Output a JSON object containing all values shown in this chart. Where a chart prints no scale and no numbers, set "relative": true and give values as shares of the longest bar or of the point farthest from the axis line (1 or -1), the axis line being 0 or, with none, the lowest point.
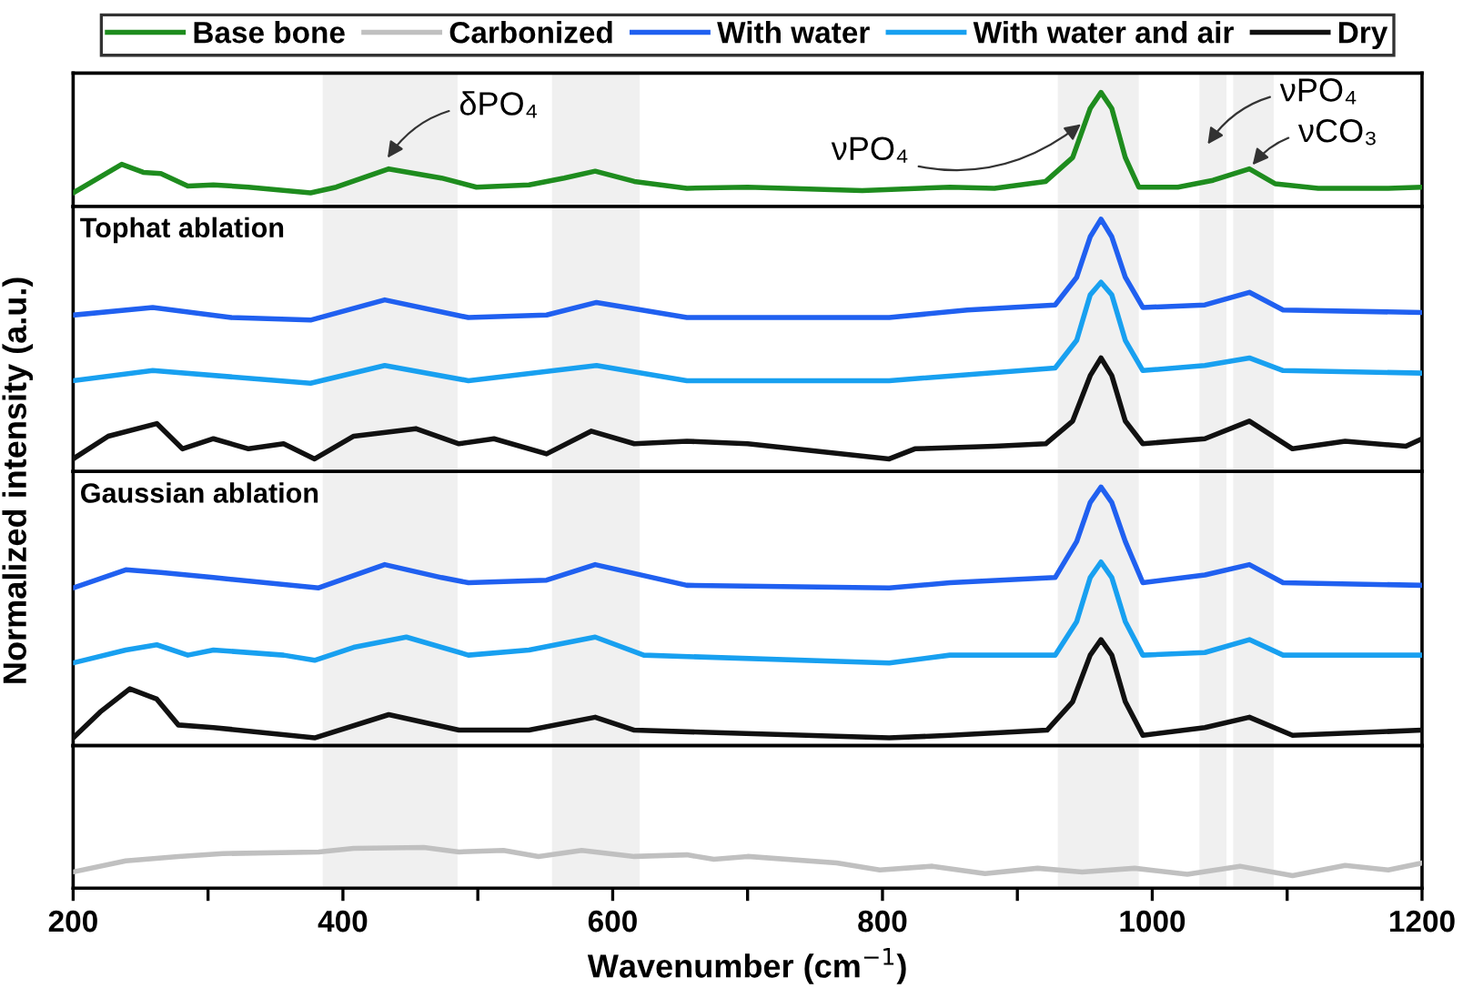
{
  "chart_data": [
    {
      "type": "line",
      "relative": true,
      "xlim": [
        200,
        1200
      ],
      "tick_labels": false,
      "legend": "top",
      "ylabel": "Normalized intensity (a.u.)",
      "bands": [
        {
          "axis": "x",
          "from": 385,
          "to": 485,
          "color": "#f0f0f0"
        },
        {
          "axis": "x",
          "from": 555,
          "to": 620,
          "color": "#f0f0f0"
        },
        {
          "axis": "x",
          "from": 930,
          "to": 990,
          "color": "#f0f0f0"
        },
        {
          "axis": "x",
          "from": 1035,
          "to": 1055,
          "color": "#f0f0f0"
        },
        {
          "axis": "x",
          "from": 1060,
          "to": 1090,
          "color": "#f0f0f0"
        }
      ],
      "annotations": [
        {
          "text": "δPO₄",
          "x": 431,
          "y": 0.39
        },
        {
          "text": "νPO₄",
          "x": 950,
          "y": 0.75
        },
        {
          "text": "νPO₄",
          "x": 1039,
          "y": 0.51
        },
        {
          "text": "νCO₃",
          "x": 1072,
          "y": 0.33
        }
      ],
      "series": [
        {
          "name": "Base bone",
          "color": "#1e8c1e",
          "x": [
            200,
            236,
            252,
            265,
            285,
            304,
            330,
            376,
            395,
            434,
            473,
            499,
            538,
            564,
            587,
            616,
            655,
            700,
            785,
            850,
            883,
            921,
            941,
            954,
            962,
            970,
            980,
            990,
            1019,
            1045,
            1072,
            1091,
            1123,
            1175,
            1200
          ],
          "values": [
            0.12,
            0.37,
            0.3,
            0.29,
            0.18,
            0.19,
            0.17,
            0.12,
            0.17,
            0.33,
            0.25,
            0.17,
            0.19,
            0.25,
            0.31,
            0.22,
            0.16,
            0.17,
            0.14,
            0.17,
            0.16,
            0.22,
            0.43,
            0.86,
            1,
            0.86,
            0.43,
            0.17,
            0.17,
            0.23,
            0.33,
            0.2,
            0.16,
            0.16,
            0.17
          ]
        }
      ]
    },
    {
      "type": "line",
      "relative": true,
      "xlim": [
        200,
        1200
      ],
      "tick_labels": false,
      "title": "Tophat ablation",
      "legend": "top",
      "bands": [
        {
          "axis": "x",
          "from": 385,
          "to": 485,
          "color": "#f0f0f0"
        },
        {
          "axis": "x",
          "from": 555,
          "to": 620,
          "color": "#f0f0f0"
        },
        {
          "axis": "x",
          "from": 930,
          "to": 990,
          "color": "#f0f0f0"
        },
        {
          "axis": "x",
          "from": 1035,
          "to": 1055,
          "color": "#f0f0f0"
        },
        {
          "axis": "x",
          "from": 1060,
          "to": 1090,
          "color": "#f0f0f0"
        }
      ],
      "series": [
        {
          "name": "With water",
          "color": "#2060f0",
          "x": [
            200,
            259,
            317,
            376,
            431,
            493,
            551,
            588,
            655,
            805,
            863,
            928,
            944,
            954,
            962,
            970,
            980,
            993,
            1039,
            1072,
            1097,
            1200
          ],
          "values": [
            0.62,
            0.65,
            0.61,
            0.6,
            0.68,
            0.61,
            0.62,
            0.67,
            0.61,
            0.61,
            0.64,
            0.66,
            0.77,
            0.93,
            1,
            0.93,
            0.77,
            0.65,
            0.66,
            0.71,
            0.64,
            0.63
          ]
        },
        {
          "name": "With water and air",
          "color": "#18a0f0",
          "x": [
            200,
            259,
            376,
            431,
            493,
            588,
            655,
            805,
            928,
            944,
            954,
            962,
            970,
            980,
            993,
            1039,
            1072,
            1097,
            1200
          ],
          "values": [
            0.36,
            0.4,
            0.35,
            0.42,
            0.36,
            0.42,
            0.36,
            0.36,
            0.41,
            0.52,
            0.7,
            0.75,
            0.7,
            0.52,
            0.4,
            0.42,
            0.45,
            0.4,
            0.39
          ]
        },
        {
          "name": "Dry",
          "color": "#111111",
          "x": [
            200,
            226,
            262,
            281,
            304,
            330,
            356,
            379,
            408,
            454,
            486,
            512,
            551,
            584,
            616,
            655,
            700,
            805,
            824,
            883,
            921,
            941,
            954,
            962,
            970,
            980,
            993,
            1039,
            1072,
            1104,
            1143,
            1188,
            1200
          ],
          "values": [
            0.05,
            0.14,
            0.19,
            0.09,
            0.13,
            0.09,
            0.11,
            0.05,
            0.14,
            0.17,
            0.11,
            0.13,
            0.07,
            0.16,
            0.11,
            0.12,
            0.11,
            0.05,
            0.09,
            0.1,
            0.11,
            0.2,
            0.38,
            0.45,
            0.38,
            0.2,
            0.11,
            0.13,
            0.2,
            0.09,
            0.12,
            0.1,
            0.13
          ]
        }
      ]
    },
    {
      "type": "line",
      "relative": true,
      "xlim": [
        200,
        1200
      ],
      "tick_labels": false,
      "title": "Gaussian ablation",
      "legend": "top",
      "bands": [
        {
          "axis": "x",
          "from": 385,
          "to": 485,
          "color": "#f0f0f0"
        },
        {
          "axis": "x",
          "from": 555,
          "to": 620,
          "color": "#f0f0f0"
        },
        {
          "axis": "x",
          "from": 930,
          "to": 990,
          "color": "#f0f0f0"
        },
        {
          "axis": "x",
          "from": 1035,
          "to": 1055,
          "color": "#f0f0f0"
        },
        {
          "axis": "x",
          "from": 1060,
          "to": 1090,
          "color": "#f0f0f0"
        }
      ],
      "series": [
        {
          "name": "With water",
          "color": "#2060f0",
          "x": [
            200,
            239,
            265,
            304,
            382,
            431,
            473,
            493,
            551,
            587,
            655,
            805,
            850,
            928,
            944,
            954,
            962,
            970,
            980,
            993,
            1039,
            1072,
            1097,
            1200
          ],
          "values": [
            0.61,
            0.68,
            0.67,
            0.65,
            0.61,
            0.7,
            0.65,
            0.63,
            0.64,
            0.7,
            0.62,
            0.61,
            0.63,
            0.65,
            0.79,
            0.94,
            1,
            0.94,
            0.79,
            0.63,
            0.66,
            0.7,
            0.63,
            0.62
          ]
        },
        {
          "name": "With water and air",
          "color": "#18a0f0",
          "x": [
            200,
            239,
            262,
            285,
            304,
            356,
            379,
            408,
            447,
            493,
            538,
            587,
            623,
            805,
            850,
            928,
            944,
            954,
            962,
            970,
            980,
            993,
            1039,
            1072,
            1097,
            1200
          ],
          "values": [
            0.32,
            0.37,
            0.39,
            0.35,
            0.37,
            0.35,
            0.33,
            0.38,
            0.42,
            0.35,
            0.37,
            0.42,
            0.35,
            0.32,
            0.35,
            0.35,
            0.48,
            0.65,
            0.71,
            0.65,
            0.48,
            0.35,
            0.36,
            0.41,
            0.35,
            0.35
          ]
        },
        {
          "name": "Dry",
          "color": "#111111",
          "x": [
            200,
            220,
            242,
            262,
            278,
            304,
            379,
            434,
            486,
            538,
            587,
            616,
            805,
            850,
            922,
            941,
            954,
            962,
            970,
            980,
            993,
            1039,
            1072,
            1104,
            1200
          ],
          "values": [
            0.03,
            0.13,
            0.22,
            0.18,
            0.08,
            0.07,
            0.03,
            0.12,
            0.06,
            0.06,
            0.11,
            0.06,
            0.03,
            0.04,
            0.06,
            0.17,
            0.35,
            0.41,
            0.35,
            0.17,
            0.04,
            0.07,
            0.11,
            0.04,
            0.06
          ]
        }
      ]
    },
    {
      "type": "line",
      "relative": true,
      "xlim": [
        200,
        1200
      ],
      "tick_labels": "x",
      "legend": "top",
      "xlabel": "Wavenumber (cm$^{−1}$)",
      "xticks": [
        200,
        {
          "value": 300,
          "label": null
        },
        400,
        {
          "value": 500,
          "label": null
        },
        600,
        {
          "value": 700,
          "label": null
        },
        800,
        {
          "value": 900,
          "label": null
        },
        1000,
        {
          "value": 1100,
          "label": null
        },
        1200
      ],
      "bands": [
        {
          "axis": "x",
          "from": 385,
          "to": 485,
          "color": "#f0f0f0"
        },
        {
          "axis": "x",
          "from": 555,
          "to": 620,
          "color": "#f0f0f0"
        },
        {
          "axis": "x",
          "from": 930,
          "to": 990,
          "color": "#f0f0f0"
        },
        {
          "axis": "x",
          "from": 1035,
          "to": 1055,
          "color": "#f0f0f0"
        },
        {
          "axis": "x",
          "from": 1060,
          "to": 1090,
          "color": "#f0f0f0"
        }
      ],
      "series": [
        {
          "name": "Carbonized",
          "color": "#c0c0c0",
          "x": [
            200,
            239,
            278,
            311,
            382,
            408,
            460,
            486,
            519,
            545,
            577,
            616,
            655,
            675,
            700,
            766,
            798,
            837,
            876,
            915,
            948,
            987,
            1026,
            1065,
            1104,
            1143,
            1175,
            1200
          ],
          "values": [
            0.4,
            0.67,
            0.78,
            0.85,
            0.89,
            0.98,
            1,
            0.89,
            0.93,
            0.78,
            0.93,
            0.78,
            0.82,
            0.71,
            0.78,
            0.62,
            0.45,
            0.54,
            0.36,
            0.49,
            0.4,
            0.49,
            0.34,
            0.54,
            0.31,
            0.56,
            0.45,
            0.62
          ]
        }
      ]
    }
  ]
}
